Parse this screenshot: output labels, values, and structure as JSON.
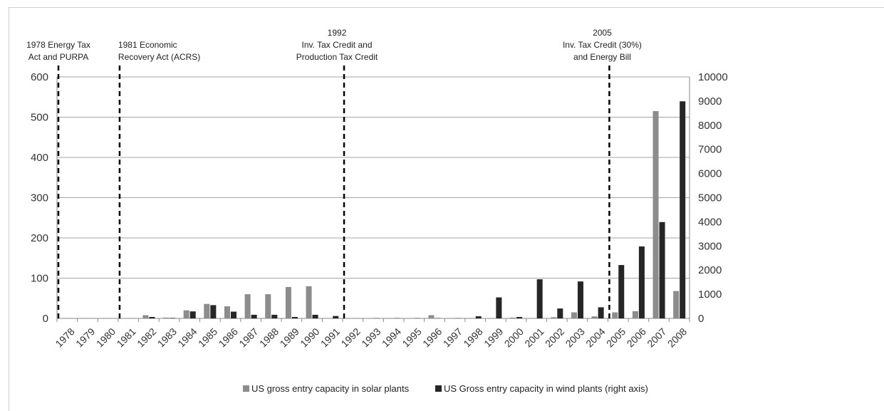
{
  "chart_data": {
    "type": "bar",
    "categories": [
      "1978",
      "1979",
      "1980",
      "1981",
      "1982",
      "1983",
      "1984",
      "1985",
      "1986",
      "1987",
      "1988",
      "1989",
      "1990",
      "1991",
      "1992",
      "1993",
      "1994",
      "1995",
      "1996",
      "1997",
      "1998",
      "1999",
      "2000",
      "2001",
      "2002",
      "2003",
      "2004",
      "2005",
      "2006",
      "2007",
      "2008"
    ],
    "series": [
      {
        "name": "US gross entry capacity in solar plants",
        "axis": "left",
        "color": "#8c8c8c",
        "values": [
          0,
          1,
          1,
          0,
          8,
          2,
          20,
          36,
          30,
          60,
          60,
          78,
          80,
          0,
          0,
          1,
          1,
          1,
          8,
          1,
          1,
          0,
          2,
          0,
          3,
          15,
          5,
          15,
          18,
          515,
          68
        ]
      },
      {
        "name": "US Gross entry capacity in wind plants (right axis)",
        "axis": "right",
        "color": "#262626",
        "values": [
          0,
          0,
          0,
          0,
          60,
          20,
          290,
          550,
          280,
          150,
          150,
          60,
          150,
          100,
          0,
          10,
          10,
          10,
          10,
          10,
          90,
          870,
          60,
          1620,
          410,
          1530,
          460,
          2210,
          2980,
          3990,
          8990
        ]
      }
    ],
    "left_axis": {
      "min": 0,
      "max": 600,
      "step": 100
    },
    "right_axis": {
      "min": 0,
      "max": 10000,
      "step": 1000
    },
    "grid": true,
    "legend_position": "bottom",
    "events": [
      {
        "year": "1978",
        "label_lines": [
          "1978 Energy Tax",
          "Act  and PURPA"
        ]
      },
      {
        "year": "1981",
        "label_lines": [
          "1981 Economic",
          "Recovery Act (ACRS)"
        ]
      },
      {
        "year": "1992",
        "label_lines": [
          "1992",
          "Inv. Tax Credit and",
          "Production Tax Credit"
        ]
      },
      {
        "year": "2005",
        "label_lines": [
          "2005",
          "Inv. Tax Credit  (30%)",
          "and Energy Bill"
        ]
      }
    ]
  }
}
